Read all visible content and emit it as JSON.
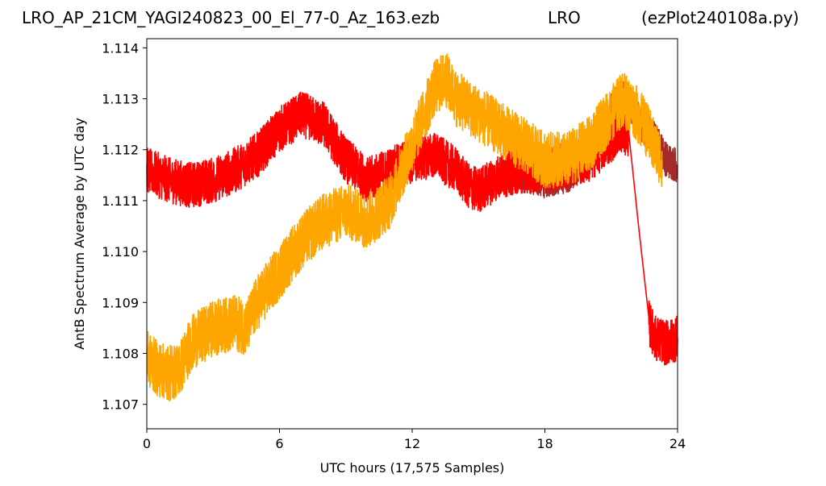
{
  "title": {
    "file": "LRO_AP_21CM_YAGI240823_00_El_77-0_Az_163.ezb",
    "station": "LRO",
    "program": "(ezPlot240108a.py)"
  },
  "chart_data": {
    "type": "line",
    "xlabel": "UTC hours  (17,575 Samples)",
    "ylabel": "AntB Spectrum Average by UTC day",
    "xlim": [
      0,
      24
    ],
    "ylim": [
      1.10652,
      1.11418
    ],
    "xticks": [
      "0",
      "6",
      "12",
      "18",
      "24"
    ],
    "yticks": [
      "1.107",
      "1.108",
      "1.109",
      "1.110",
      "1.111",
      "1.112",
      "1.113",
      "1.114"
    ],
    "grid": false,
    "series": [
      {
        "color": "#a52a2a",
        "noise": 0.00035,
        "x": [
          16.0,
          17.0,
          18.0,
          19.0,
          20.0,
          21.0,
          21.5,
          22.0,
          22.5,
          23.0,
          23.5,
          24.0
        ],
        "y": [
          1.1115,
          1.1115,
          1.1114,
          1.1115,
          1.1118,
          1.1128,
          1.1131,
          1.1128,
          1.1124,
          1.1122,
          1.1118,
          1.1117
        ]
      },
      {
        "color": "#ff0000",
        "noise": 0.00045,
        "x": [
          0,
          1,
          2,
          3,
          4,
          5,
          6,
          7,
          7.5,
          8,
          9,
          10,
          11,
          12,
          13,
          14,
          14.5,
          15,
          16,
          17,
          18,
          19,
          20,
          21,
          21.4,
          21.8,
          22.7,
          23,
          23.5,
          24
        ],
        "y": [
          1.1116,
          1.1114,
          1.1113,
          1.1114,
          1.1116,
          1.1119,
          1.1124,
          1.1127,
          1.1126,
          1.1125,
          1.1118,
          1.1114,
          1.1116,
          1.1118,
          1.1119,
          1.1116,
          1.1113,
          1.1112,
          1.1115,
          1.1116,
          1.1116,
          1.1117,
          1.1118,
          1.1122,
          1.1124,
          1.1123,
          1.1086,
          1.1083,
          1.1082,
          1.1083
        ]
      },
      {
        "color": "#ffa500",
        "noise": 0.00055,
        "x": [
          0,
          0.5,
          1,
          1.5,
          2,
          3,
          4,
          4.5,
          5,
          6,
          7,
          8,
          9,
          10,
          11,
          12,
          13,
          13.5,
          14,
          15,
          16,
          17,
          18,
          19,
          20,
          21,
          21.5,
          22,
          22.5,
          23,
          23.3
        ],
        "y": [
          1.1079,
          1.1077,
          1.1076,
          1.1077,
          1.1082,
          1.1085,
          1.1086,
          1.1085,
          1.109,
          1.1096,
          1.1102,
          1.1106,
          1.1108,
          1.1106,
          1.111,
          1.1121,
          1.1132,
          1.1134,
          1.113,
          1.1127,
          1.1124,
          1.1121,
          1.1118,
          1.1118,
          1.1121,
          1.1127,
          1.113,
          1.1128,
          1.1125,
          1.112,
          1.1118
        ]
      }
    ]
  }
}
